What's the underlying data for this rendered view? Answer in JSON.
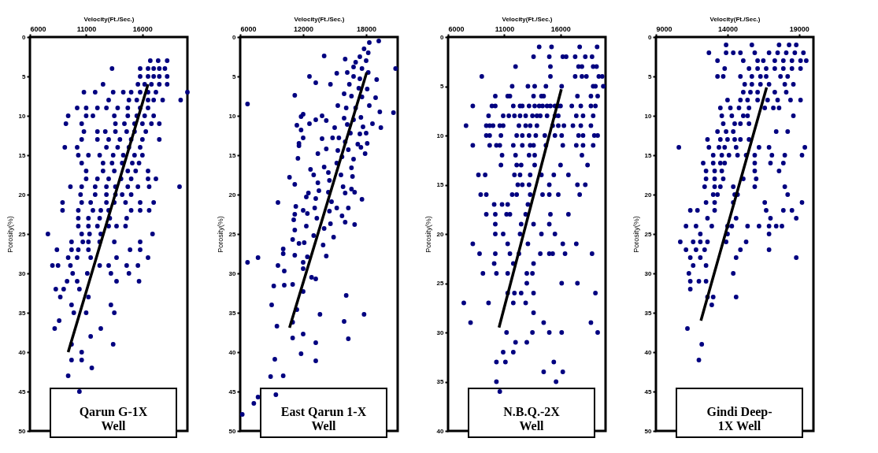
{
  "chart_data": [
    {
      "type": "scatter",
      "xlabel": "Velocity(Ft./Sec.)",
      "ylabel": "Porosity(%)",
      "xlim": [
        6000,
        20000
      ],
      "xticks": [
        6000,
        11000,
        16000
      ],
      "ylim": [
        50,
        0
      ],
      "yticks": [
        0,
        5,
        10,
        15,
        20,
        25,
        30,
        35,
        40,
        45,
        50
      ],
      "grid": false,
      "annotations": [
        "Qarun G-1X\nWell"
      ],
      "series": [
        {
          "type": "scatter",
          "marker": "circle",
          "color": "#000080",
          "x": [
            16700,
            17400,
            18200,
            13300,
            15800,
            16500,
            17000,
            17500,
            18000,
            15800,
            16500,
            17000,
            17500,
            18200,
            12500,
            15600,
            16200,
            16800,
            17500,
            18200,
            10800,
            11800,
            13400,
            14300,
            15000,
            15800,
            16500,
            17200,
            20000,
            13000,
            14800,
            15500,
            16500,
            17000,
            17800,
            19400,
            10200,
            11000,
            12000,
            12800,
            13800,
            14700,
            15800,
            16500,
            9400,
            11000,
            11600,
            13500,
            14700,
            15500,
            16200,
            17000,
            9200,
            10600,
            13600,
            14400,
            15300,
            16000,
            16800,
            17500,
            10800,
            12000,
            12700,
            13600,
            14600,
            15300,
            16300,
            10600,
            12000,
            13000,
            14000,
            15000,
            16000,
            17500,
            9100,
            10200,
            12800,
            13800,
            14800,
            15800,
            10300,
            11200,
            12200,
            13400,
            14300,
            15300,
            16000,
            10600,
            12500,
            13300,
            14200,
            15100,
            15700,
            11000,
            12500,
            13500,
            14700,
            15400,
            16500,
            11000,
            12000,
            13000,
            14100,
            15000,
            16500,
            17200,
            9600,
            10600,
            11800,
            12800,
            13600,
            14700,
            15600,
            16600,
            19300,
            10500,
            11800,
            12800,
            13600,
            14200,
            15000,
            8900,
            10600,
            11400,
            12800,
            13500,
            14500,
            15800,
            17000,
            8900,
            10300,
            11600,
            12300,
            13000,
            15000,
            15800,
            16600,
            10300,
            11200,
            12200,
            13100,
            14600,
            10300,
            11200,
            12000,
            13000,
            13700,
            14500,
            7600,
            10600,
            11300,
            12300,
            16900,
            9700,
            10700,
            11200,
            12200,
            13500,
            15800,
            8400,
            9700,
            10300,
            11200,
            14900,
            15800,
            9400,
            10200,
            11400,
            13700,
            16500,
            8000,
            8500,
            9600,
            12200,
            13000,
            14600,
            15600,
            9800,
            11100,
            13200,
            14800,
            9300,
            10200,
            13700,
            15700,
            8300,
            9000,
            10400,
            8700,
            11200,
            9700,
            13200,
            9900,
            11000,
            13500,
            8600,
            8200,
            12300,
            11400,
            9700,
            13400,
            10600,
            9700,
            10600,
            11500,
            9400,
            10400
          ],
          "values": [
            3,
            3,
            3,
            4,
            4,
            4,
            4,
            4,
            4,
            5,
            5,
            5,
            5,
            5,
            6,
            6,
            6,
            6,
            6,
            6,
            7,
            7,
            7,
            7,
            7,
            7,
            7,
            7,
            7,
            8,
            8,
            8,
            8,
            8,
            8,
            8,
            9,
            9,
            9,
            9,
            9,
            9,
            9,
            9,
            10,
            10,
            10,
            10,
            10,
            10,
            10,
            10,
            11,
            11,
            11,
            11,
            11,
            11,
            11,
            11,
            12,
            12,
            12,
            12,
            12,
            12,
            12,
            13,
            13,
            13,
            13,
            13,
            13,
            13,
            14,
            14,
            14,
            14,
            14,
            14,
            15,
            15,
            15,
            15,
            15,
            15,
            15,
            16,
            16,
            16,
            16,
            16,
            16,
            17,
            17,
            17,
            17,
            17,
            17,
            18,
            18,
            18,
            18,
            18,
            18,
            18,
            19,
            19,
            19,
            19,
            19,
            19,
            19,
            19,
            19,
            20,
            20,
            20,
            20,
            20,
            20,
            21,
            21,
            21,
            21,
            21,
            21,
            21,
            21,
            22,
            22,
            22,
            22,
            22,
            22,
            22,
            22,
            23,
            23,
            23,
            23,
            23,
            24,
            24,
            24,
            24,
            24,
            24,
            25,
            25,
            25,
            25,
            25,
            26,
            26,
            26,
            26,
            26,
            26,
            27,
            27,
            27,
            27,
            27,
            27,
            28,
            28,
            28,
            28,
            28,
            29,
            29,
            29,
            29,
            29,
            29,
            29,
            30,
            30,
            30,
            30,
            31,
            31,
            31,
            31,
            32,
            32,
            32,
            33,
            33,
            34,
            34,
            35,
            35,
            35,
            36,
            37,
            37,
            38,
            39,
            39,
            40,
            41,
            41,
            42,
            43,
            45
          ]
        },
        {
          "type": "line",
          "color": "#000000",
          "line_style": "solid",
          "x": [
            16500,
            9400
          ],
          "values": [
            6,
            40
          ]
        }
      ]
    },
    {
      "type": "scatter",
      "xlabel": "Velocity(Ft./Sec.)",
      "ylabel": "Porosity(%)",
      "xlim": [
        6000,
        21000
      ],
      "xticks": [
        6000,
        12000,
        18000
      ],
      "ylim": [
        50,
        0
      ],
      "yticks": [
        0,
        5,
        10,
        15,
        20,
        25,
        30,
        35,
        40,
        45,
        50
      ],
      "grid": false,
      "annotations": [
        "East Qarun 1-X\nWell"
      ],
      "series": [
        {
          "type": "scatter",
          "marker": "circle",
          "color": "#000080",
          "x": [
            18300,
            19200,
            17800,
            18200,
            17400,
            14000,
            16000,
            17000,
            18000,
            16800,
            17600,
            18200,
            16200,
            15200,
            16800,
            17400,
            12600,
            13200,
            14600,
            16400,
            17300,
            18100,
            19000,
            20800,
            15900,
            16600,
            17600,
            18900,
            11200,
            6700,
            15300,
            16100,
            17000,
            18300,
            19300,
            20600,
            12000,
            11800,
            13800,
            15900,
            16800,
            17500,
            14200,
            15000,
            16200,
            11400,
            17700,
            18600,
            19400,
            12600,
            13200,
            11800,
            15400,
            16500,
            17400,
            18000,
            12000,
            13800,
            14800,
            11600,
            16000,
            17200,
            18100,
            14200,
            15300,
            16300,
            17500,
            11600,
            13400,
            15700,
            16800,
            17900,
            11500,
            12700,
            14000,
            15200,
            16600,
            13000,
            14400,
            15600,
            16700,
            10700,
            11200,
            13400,
            14500,
            15800,
            16600,
            12500,
            13500,
            14400,
            16000,
            16900,
            17600,
            9600,
            12300,
            13200,
            14700,
            11300,
            12000,
            13100,
            14500,
            15200,
            16300,
            11200,
            12400,
            13300,
            14600,
            15700,
            16000,
            16900,
            11100,
            11200,
            12300,
            13000,
            14000,
            14900,
            11000,
            11600,
            12100,
            13900,
            10100,
            10100,
            11200,
            12400,
            14200,
            12000,
            7700,
            6700,
            9600,
            12000,
            10200,
            12800,
            13200,
            9200,
            10200,
            11000,
            12000,
            16100,
            9000,
            11400,
            13600,
            15900,
            17800,
            11000,
            9500,
            11000,
            12000,
            13200,
            16300,
            11800,
            9300,
            13200,
            8900,
            10100,
            9400,
            7700,
            7300,
            6200
          ],
          "values": [
            0.7,
            0.5,
            1.5,
            2,
            2.5,
            2.4,
            2.8,
            3.2,
            3,
            3.8,
            4,
            4.5,
            4.5,
            4.6,
            5,
            5.3,
            5,
            5.8,
            6,
            6,
            6.5,
            6.6,
            5.4,
            4,
            7.2,
            7.5,
            7.6,
            7.7,
            7.4,
            8.5,
            8.7,
            9,
            9,
            8.7,
            9.5,
            9.6,
            9.8,
            10.1,
            10,
            10.3,
            10.5,
            10.2,
            10.6,
            11.5,
            11.1,
            11.2,
            11.4,
            11,
            11.5,
            11,
            10.5,
            11.8,
            12.8,
            12.2,
            12.3,
            12.2,
            12.8,
            12.9,
            12.8,
            13.5,
            13.3,
            13.6,
            13.5,
            14.2,
            14.4,
            14.3,
            14,
            13.8,
            14.8,
            15.2,
            15.5,
            14.8,
            15.4,
            16.8,
            16.5,
            16,
            16.6,
            17.5,
            17.2,
            17.5,
            17.7,
            17.8,
            18.7,
            18.5,
            18.2,
            19,
            19.3,
            19.8,
            19.5,
            19.7,
            19.8,
            19.7,
            20.6,
            21,
            20.3,
            20.5,
            20.9,
            21.5,
            22,
            21.7,
            22.1,
            21.7,
            21.7,
            22.5,
            22.4,
            23,
            23.7,
            22.7,
            23.5,
            23.8,
            23.2,
            24.5,
            24,
            25.2,
            24.3,
            25.4,
            25.7,
            26.2,
            26.1,
            26.4,
            26.9,
            27.5,
            27.7,
            27.9,
            27.8,
            28.6,
            28,
            28.6,
            29,
            29.4,
            29.7,
            30.5,
            30.7,
            31.6,
            31.5,
            31.4,
            32.3,
            32.8,
            34,
            34.6,
            35.2,
            36.1,
            35.2,
            36.2,
            36.7,
            38.2,
            37.7,
            38.8,
            38.3,
            40.2,
            40.9,
            41.1,
            43.1,
            43,
            45.4,
            45.7,
            46.5,
            47.9
          ]
        },
        {
          "type": "line",
          "color": "#000000",
          "line_style": "solid",
          "x": [
            18050,
            10700
          ],
          "values": [
            4.5,
            36.9
          ]
        }
      ]
    },
    {
      "type": "scatter",
      "xlabel": "Velocity(Ft./Sec.)",
      "ylabel": "Porosity(%)",
      "xlim": [
        6000,
        20000
      ],
      "xticks": [
        6000,
        11000,
        16000
      ],
      "ylim": [
        40,
        0
      ],
      "yticks": [
        0,
        5,
        10,
        15,
        20,
        25,
        30,
        35,
        40
      ],
      "grid": false,
      "annotations": [
        "N.B.Q.-2X\nWell"
      ],
      "series": [
        {
          "type": "scatter",
          "marker": "circle",
          "color": "#000080",
          "x": [
            14100,
            15200,
            17700,
            19250,
            13600,
            15000,
            16200,
            16500,
            17300,
            18200,
            18800,
            12000,
            15100,
            17600,
            17900,
            18900,
            19200,
            9000,
            15100,
            17300,
            17900,
            18300,
            19400,
            19700,
            11700,
            13100,
            13700,
            14700,
            16100,
            18900,
            19100,
            19800,
            10200,
            11300,
            11500,
            13600,
            14300,
            14500,
            17500,
            18700,
            19300,
            8200,
            9900,
            10200,
            11800,
            12400,
            12600,
            13200,
            13700,
            14100,
            14400,
            14800,
            15100,
            15500,
            15800,
            16000,
            17000,
            17800,
            18700,
            19100,
            9600,
            10900,
            11400,
            11900,
            12400,
            12900,
            13500,
            13900,
            14200,
            14800,
            15500,
            15800,
            17400,
            18000,
            18900,
            7600,
            9400,
            9700,
            10000,
            10600,
            10900,
            12300,
            12900,
            13300,
            13900,
            15300,
            15800,
            16300,
            17100,
            17800,
            18700,
            9400,
            9700,
            10700,
            12100,
            12600,
            13200,
            13800,
            14600,
            15500,
            16100,
            17600,
            18000,
            19000,
            19300,
            8200,
            9700,
            10300,
            10600,
            11800,
            12600,
            13300,
            13600,
            14700,
            16200,
            17400,
            18000,
            18900,
            10800,
            12000,
            13200,
            13700,
            17900,
            10700,
            12100,
            12500,
            13700,
            16000,
            18400,
            8700,
            9300,
            11900,
            12400,
            13300,
            14300,
            15400,
            16700,
            12200,
            12600,
            13200,
            15000,
            17500,
            18200,
            8900,
            9400,
            11700,
            12100,
            13300,
            14400,
            15000,
            15800,
            17700,
            10100,
            10800,
            11300,
            13100,
            9400,
            10200,
            11200,
            11500,
            12900,
            15100,
            16700,
            10200,
            12500,
            13600,
            15000,
            10200,
            10900,
            12400,
            14300,
            15500,
            8200,
            11300,
            13100,
            16200,
            17400,
            8800,
            10200,
            11500,
            12300,
            14200,
            15000,
            15300,
            16400,
            18800,
            10100,
            11800,
            13600,
            9100,
            10300,
            11300,
            13000,
            13500,
            13000,
            16100,
            17500,
            11300,
            11900,
            12500,
            13600,
            19100,
            7400,
            9600,
            11800,
            12900,
            13600,
            8000,
            14500,
            18700,
            11200,
            13500,
            15000,
            16100,
            19300,
            12000,
            13000,
            10900,
            11800,
            10300,
            11100,
            15400,
            14500,
            16200,
            10300,
            15600,
            10600
          ],
          "values": [
            1,
            1,
            1,
            1,
            2,
            2,
            2,
            2,
            2,
            2,
            2,
            3,
            3,
            3,
            3,
            3,
            3,
            4,
            4,
            4,
            4,
            4,
            4,
            4,
            5,
            5,
            5,
            5,
            5,
            5,
            5,
            5,
            6,
            6,
            6,
            6,
            6,
            6,
            6,
            6,
            6,
            7,
            7,
            7,
            7,
            7,
            7,
            7,
            7,
            7,
            7,
            7,
            7,
            7,
            7,
            7,
            7,
            7,
            7,
            7,
            8,
            8,
            8,
            8,
            8,
            8,
            8,
            8,
            8,
            8,
            8,
            8,
            8,
            8,
            8,
            9,
            9,
            9,
            9,
            9,
            9,
            9,
            9,
            9,
            9,
            9,
            9,
            9,
            9,
            9,
            9,
            10,
            10,
            10,
            10,
            10,
            10,
            10,
            10,
            10,
            10,
            10,
            10,
            10,
            10,
            11,
            11,
            11,
            11,
            11,
            11,
            11,
            11,
            11,
            11,
            11,
            11,
            11,
            12,
            12,
            12,
            12,
            12,
            13,
            13,
            13,
            13,
            13,
            13,
            14,
            14,
            14,
            14,
            14,
            14,
            14,
            14,
            15,
            15,
            15,
            15,
            15,
            15,
            16,
            16,
            16,
            16,
            16,
            16,
            16,
            16,
            16,
            17,
            17,
            17,
            17,
            18,
            18,
            18,
            18,
            18,
            18,
            18,
            19,
            19,
            19,
            19,
            20,
            20,
            20,
            20,
            20,
            21,
            21,
            21,
            21,
            21,
            22,
            22,
            22,
            22,
            22,
            22,
            22,
            22,
            22,
            23,
            23,
            23,
            24,
            24,
            24,
            24,
            24,
            25,
            25,
            25,
            26,
            26,
            26,
            26,
            26,
            27,
            27,
            27,
            27,
            28,
            29,
            29,
            29,
            30,
            30,
            30,
            30,
            30,
            31,
            31,
            32,
            32,
            33,
            33,
            33,
            34,
            34,
            35,
            35,
            36
          ]
        },
        {
          "type": "line",
          "color": "#000000",
          "line_style": "solid",
          "x": [
            16070,
            10530
          ],
          "values": [
            5.3,
            29.5
          ]
        }
      ]
    },
    {
      "type": "scatter",
      "xlabel": "Velocity(Ft./Sec.)",
      "ylabel": "Porosity(%)",
      "xlim": [
        9000,
        20000
      ],
      "xticks": [
        9000,
        14000,
        19000
      ],
      "ylim": [
        50,
        0
      ],
      "yticks": [
        0,
        5,
        10,
        15,
        20,
        25,
        30,
        35,
        40,
        45,
        50
      ],
      "grid": false,
      "annotations": [
        "Gindi Deep-\n1X Well"
      ],
      "series": [
        {
          "type": "scatter",
          "marker": "circle",
          "color": "#000080",
          "x": [
            13900,
            15700,
            17600,
            18300,
            18800,
            12700,
            13900,
            14400,
            14900,
            15900,
            16900,
            17500,
            18100,
            18700,
            19300,
            13300,
            15100,
            16100,
            16500,
            17300,
            17900,
            18500,
            19100,
            19500,
            13800,
            15500,
            16100,
            16700,
            17300,
            17900,
            18500,
            19100,
            13300,
            13700,
            14900,
            15700,
            16300,
            16700,
            17700,
            18200,
            15200,
            15700,
            16300,
            16900,
            18000,
            18600,
            15100,
            15600,
            16100,
            17300,
            18100,
            14000,
            14900,
            15400,
            16100,
            16800,
            17500,
            18400,
            19100,
            13500,
            14200,
            14800,
            15500,
            16600,
            17200,
            17600,
            13600,
            14300,
            15100,
            15400,
            18600,
            13700,
            14500,
            14900,
            15500,
            13300,
            13900,
            14400,
            17400,
            18200,
            12600,
            13500,
            14000,
            14500,
            14900,
            15500,
            10600,
            12700,
            13400,
            13800,
            14600,
            16200,
            16900,
            19400,
            13000,
            13600,
            14100,
            14700,
            15300,
            15900,
            17100,
            18000,
            19200,
            12300,
            13000,
            13500,
            13800,
            15900,
            17000,
            17900,
            12500,
            13100,
            13600,
            15900,
            17600,
            12500,
            13100,
            13700,
            15100,
            16000,
            12400,
            13100,
            13500,
            14400,
            15900,
            18000,
            13000,
            13300,
            14500,
            14700,
            18200,
            12500,
            13100,
            14400,
            16600,
            19200,
            11400,
            11900,
            13100,
            16700,
            17900,
            18500,
            12600,
            14600,
            17000,
            18800,
            11100,
            11800,
            12900,
            14000,
            14300,
            15400,
            16200,
            16900,
            17400,
            17800,
            12100,
            14000,
            16900,
            10700,
            11600,
            12100,
            12600,
            13900,
            15300,
            11100,
            11800,
            12400,
            14900,
            16900,
            11400,
            12100,
            14600,
            18800,
            11600,
            12500,
            11300,
            14400,
            11400,
            12000,
            12500,
            11400,
            12600,
            13000,
            14600,
            12900,
            11200,
            12200,
            12000
          ],
          "values": [
            1,
            1,
            1,
            1,
            1,
            2,
            2,
            2,
            2,
            2,
            2,
            2,
            2,
            2,
            2,
            3,
            3,
            3,
            3,
            3,
            3,
            3,
            3,
            3,
            4,
            4,
            4,
            4,
            4,
            4,
            4,
            4,
            5,
            5,
            5,
            5,
            5,
            5,
            5,
            5,
            6,
            6,
            6,
            6,
            6,
            6,
            7,
            7,
            7,
            7,
            7,
            8,
            8,
            8,
            8,
            8,
            8,
            8,
            8,
            9,
            9,
            9,
            9,
            9,
            9,
            9,
            10,
            10,
            10,
            10,
            10,
            11,
            11,
            11,
            11,
            12,
            12,
            12,
            12,
            12,
            13,
            13,
            13,
            13,
            13,
            13,
            14,
            14,
            14,
            14,
            14,
            14,
            14,
            14,
            15,
            15,
            15,
            15,
            15,
            15,
            15,
            15,
            15,
            16,
            16,
            16,
            16,
            16,
            16,
            16,
            17,
            17,
            17,
            17,
            17,
            18,
            18,
            18,
            18,
            18,
            19,
            19,
            19,
            19,
            19,
            19,
            20,
            20,
            20,
            20,
            20,
            21,
            21,
            21,
            21,
            21,
            22,
            22,
            22,
            22,
            22,
            22,
            23,
            23,
            23,
            23,
            24,
            24,
            24,
            24,
            24,
            24,
            24,
            24,
            24,
            24,
            25,
            25,
            25,
            26,
            26,
            26,
            26,
            26,
            26,
            27,
            27,
            27,
            27,
            27,
            28,
            28,
            28,
            28,
            29,
            29,
            30,
            30,
            31,
            31,
            31,
            32,
            33,
            33,
            33,
            34,
            37,
            39,
            41
          ]
        },
        {
          "type": "line",
          "color": "#000000",
          "line_style": "solid",
          "x": [
            16730,
            12140
          ],
          "values": [
            6.4,
            36
          ]
        }
      ]
    }
  ]
}
